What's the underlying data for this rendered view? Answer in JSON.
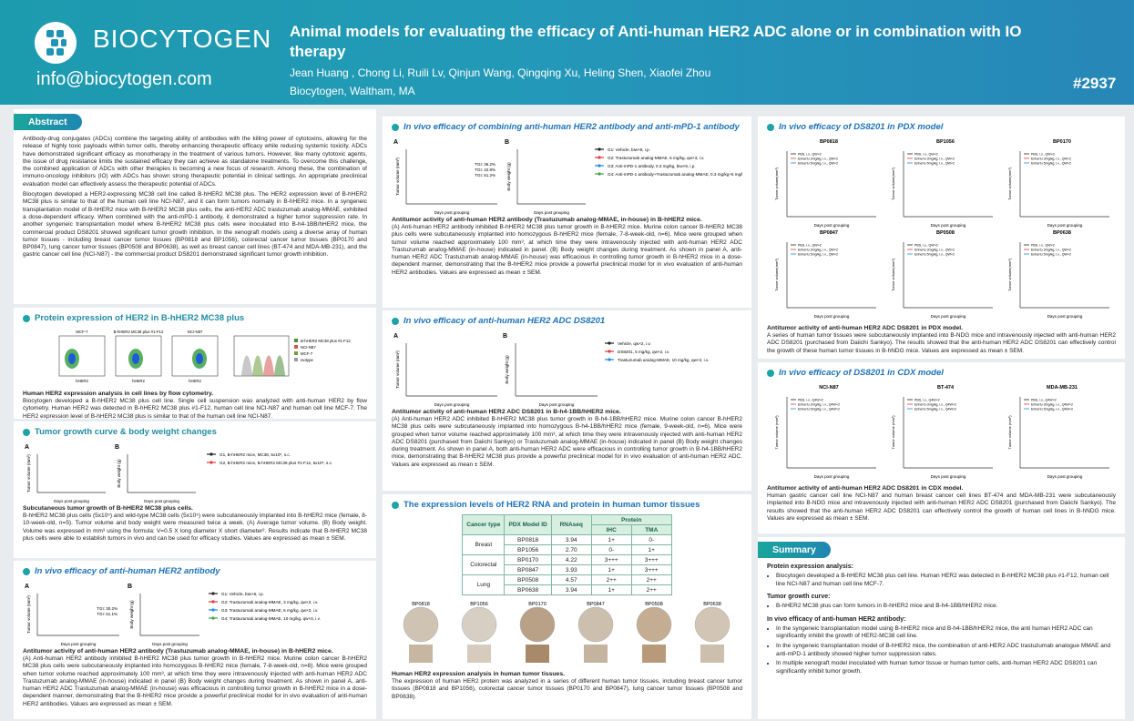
{
  "header": {
    "logo": "BIOCYTOGEN",
    "email": "info@biocytogen.com",
    "title": "Animal models for evaluating the efficacy of Anti-human HER2 ADC alone or in combination with IO therapy",
    "authors": "Jean Huang , Chong Li, Ruili Lv, Qinjun Wang, Qingqing Xu, Heling Shen, Xiaofei Zhou",
    "affiliation": "Biocytogen, Waltham, MA",
    "poster_number": "#2937"
  },
  "abstract": {
    "title": "Abstract",
    "paragraphs": [
      "Antibody-drug conjugates (ADCs) combine the targeting ability of antibodies with the killing power of cytotoxins, allowing for the release of highly toxic payloads within tumor cells, thereby enhancing therapeutic efficacy while reducing systemic toxicity. ADCs have demonstrated significant efficacy as monotherapy in the treatment of various tumors. However, like many cytotoxic agents, the issue of drug resistance limits the sustained efficacy they can achieve as standalone treatments. To overcome this challenge, the combined application of ADCs with other therapies is becoming a new focus of research. Among these, the combination of immuno-oncology inhibitors (IO) with ADCs has shown strong therapeutic potential in clinical settings. An appropriate preclinical evaluation model can effectively assess the therapeutic potential of ADCs.",
      "Biocytogen developed a HER2-expressing MC38 cell line called B-hHER2 MC38 plus. The HER2 expression level of B-hHER2 MC38 plus is similar to that of the human cell line NCI-N87, and it can form tumors normally in B-hHER2 mice. In a syngeneic transplantation model of B-hHER2 mice with B-hHER2 MC38 plus cells, the anti-HER2 ADC trastuzumab analog-MMAE, exhibited a dose-dependent efficacy. When combined with the anti-mPD-1 antibody, it demonstrated a higher tumor suppression rate. In another syngeneic transplantation model where B-hHER2 MC38 plus cells were inoculated into B-h4-1BB/hHER2 mice, the commercial product DS8201 showed significant tumor growth inhibition. In the xenograft models using a diverse array of human tumor tissues - including breast cancer tumor tissues (BP0818 and BP1056), colorectal cancer tumor tissues (BP0170 and BP0847), lung cancer tumor tissues (BP0508 and BP0638), as well as breast cancer cell lines (BT-474 and MDA-MB-231), and the gastric cancer cell line (NCI-N87) - the commercial product DS8201 demonstrated significant tumor growth inhibition."
    ]
  },
  "protein_expression": {
    "title": "Protein expression of HER2 in B-hHER2 MC38 plus",
    "plots": [
      "MCF-7",
      "B-hHER2 MC38 plus #1-F12",
      "NCI-N87"
    ],
    "x_label": "hHER2",
    "legend": [
      "B-hHER2 MC38 plus #1-F12",
      "NCI-N87",
      "MCF-7",
      "Isotype"
    ],
    "caption_title": "Human HER2 expression analysis in cell lines by flow cytometry.",
    "caption": "Biocytogen developed a B-hHER2 MC38 plus cell line. Single cell suspension was analyzed with anti-human HER2 by flow cytometry. Human HER2 was detected in B-hHER2 MC38 plus #1-F12, human cell line NCI-N87 and human cell line MCF-7. The HER2 expression level of B-hHER2 MC38 plus is similar to that of the human cell line NCI-N87."
  },
  "tumor_growth": {
    "title": "Tumor growth curve & body weight changes",
    "figures": [
      {
        "panel": "A",
        "ylabel": "Tumor volume (mm³)",
        "xlabel": "Days post grouping"
      },
      {
        "panel": "B",
        "ylabel": "Body weight (g)",
        "xlabel": "Days post grouping"
      }
    ],
    "legend": [
      "G1, B-hHER2 mice, MC38, 5x10⁵, s.c.",
      "G2, B-hHER2 mice, B-hHER2 MC38 plus #1-F12, 5x10⁵, s.c."
    ],
    "caption_title": "Subcutaneous tumor growth of B-hHER2 MC38 plus cells.",
    "caption": "B-hHER2 MC38 plus cells (5x10⁵) and wild-type MC38 cells (5x10⁵) were subcutaneously implanted into B-hHER2 mice (female, 8-10-week-old, n=5). Tumor volume and body weight were measured twice a week. (A) Average tumor volume. (B) Body weight. Volume was expressed in mm³ using the formula: V=0.5 X long diameter X short diameter². Results indicate that B-hHER2 MC38 plus cells were able to establish tumors in vivo and can be used for efficacy studies. Values are expressed as mean ± SEM."
  },
  "antibody": {
    "title": "In vivo efficacy of anti-human HER2 antibody",
    "figures": [
      {
        "panel": "A",
        "ylabel": "Tumor volume (mm³)",
        "xlabel": "Days post grouping",
        "notes": [
          "TGI: 30.2%",
          "TGI: 61.1%"
        ]
      },
      {
        "panel": "B",
        "ylabel": "Body weight (g)",
        "xlabel": "Days post grouping"
      }
    ],
    "legend": [
      "G1: Vehicle, biw×6, i.p.",
      "G2: Trastuzumab analog-MMAE, 3 mg/kg, qw×3, i.v.",
      "G3: Trastuzumab analog-MMAE, 5 mg/kg, qw×3, i.v.",
      "G4: Trastuzumab analog-MMAE, 10 mg/kg, qw×3, i.v."
    ],
    "caption_title": "Antitumor activity of anti-human HER2 antibody (Trastuzumab analog-MMAE, in-house) in B-hHER2 mice.",
    "caption": "(A) Anti-human HER2 antibody inhibited B-hHER2 MC38 plus tumor growth in B-hHER2 mice. Murine colon cancer B-hHER2 MC38 plus cells were subcutaneously implanted into homozygous B-hHER2 mice (female, 7-8-week-old, n=8). Mice were grouped when tumor volume reached approximately 100 mm³, at which time they were intravenously injected with anti-human HER2 ADC Trastuzumab analog-MMAE (in-house) indicated in panel (B) Body weight changes during treatment. As shown in panel A, anti-human HER2 ADC Trastuzumab analog-MMAE (in-house) was efficacious in controlling tumor growth in B-hHER2 mice in a dose-dependent manner, demonstrating that the B-hHER2 mice provide a powerful preclinical model for in vivo evaluation of anti-human HER2 antibodies. Values are expressed as mean ± SEM."
  },
  "combination": {
    "title": "In vivo efficacy of combining anti-human HER2 antibody and anti-mPD-1 antibody",
    "figures": [
      {
        "panel": "A",
        "ylabel": "Tumor volume (mm³)",
        "xlabel": "Days post grouping",
        "notes": [
          "TGI: 36.2%",
          "TGI: 42.8%",
          "TGI: 51.2%"
        ]
      },
      {
        "panel": "B",
        "ylabel": "Body weight (g)",
        "xlabel": "Days post grouping"
      }
    ],
    "legend": [
      "G1: Vehicle, biw×8, i.p.",
      "G2: Trastuzumab analog-MMAE, 5 mg/kg, qw×3, i.v.",
      "G3: Anti-mPD-1 antibody, 0.3 mg/kg, biw×6, i.p.",
      "G4: Anti-mPD-1 antibody+Trastuzumab analog-MMAE, 0.3 mg/kg+5 mg/kg, biw×6+qw×3, i.p.+ i.v."
    ],
    "caption_title": "Antitumor activity of anti-human HER2 antibody (Trastuzumab analog-MMAE, in-house) in B-hHER2 mice.",
    "caption": "(A) Anti-human HER2 antibody inhibited B-hHER2 MC38 plus tumor growth in B-hHER2 mice. Murine colon cancer B-hHER2 MC38 plus cells were subcutaneously implanted into homozygous B-hHER2 mice (female, 7-8-week-old, n=6). Mice were grouped when tumor volume reached approximately 100 mm³, at which time they were intravenously injected with anti-human HER2 ADC Trastuzumab analog-MMAE (in-house) indicated in panel. (B) Body weight changes during treatment. As shown in panel A, anti-human HER2 ADC Trastuzumab analog-MMAE (in-house) was efficacious in controlling tumor growth in B-hHER2 mice in a dose-dependent manner, demonstrating that the B-hHER2 mice provide a powerful preclinical model for in vivo evaluation of anti-human HER2 antibodies. Values are expressed as mean ± SEM."
  },
  "ds8201": {
    "title": "In vivo efficacy of anti-human HER2 ADC DS8201",
    "figures": [
      {
        "panel": "A",
        "ylabel": "Tumor volume (mm³)",
        "xlabel": "Days post grouping"
      },
      {
        "panel": "B",
        "ylabel": "Body weight (g)",
        "xlabel": "Days post grouping"
      }
    ],
    "legend": [
      "Vehicle, qw×2, i.v.",
      "DS8201, 5 mg/kg, qw×2, i.v.",
      "Trastuzumab analog-MMAE, 10 mg/kg, qw×2, i.v."
    ],
    "caption_title": "Antitumor activity of anti-human HER2 ADC DS8201 in B-h4-1BB/hHER2 mice.",
    "caption": "(A) Anti-human HER2 ADC inhibited B-hHER2 MC38 plus tumor growth in B-h4-1BB/hHER2 mice. Murine colon cancer B-hHER2 MC38 plus cells were subcutaneously implanted into homozygous B-h4-1BB/hHER2 mice (female, 9-week-old, n=6). Mice were grouped when tumor volume reached approximately 100 mm³, at which time they were intravenously injected with anti-human HER2 ADC DS8201 (purchased from Daiichi Sankyo) or Trastuzumab analog-MMAE (in-house) indicated in panel (B) Body weight changes during treatment. As shown in panel A, both anti-human HER2 ADC were efficacious in controlling tumor growth in B-h4-1BB/hHER2 mice, demonstrating that B-hHER2 MC38 plus provide a powerful preclinical model for in vivo evaluation of anti-human HER2 ADC. Values are expressed as mean ± SEM."
  },
  "expression": {
    "title": "The expression levels of HER2 RNA and protein in human tumor tissues",
    "table": {
      "headers": [
        "Cancer type",
        "PDX Model ID",
        "RNAseq",
        "Protein"
      ],
      "subheaders": [
        "IHC",
        "TMA"
      ],
      "groups": [
        {
          "type": "Breast",
          "rows": [
            [
              "BP0818",
              "3.94",
              "1+",
              "0-"
            ],
            [
              "BP1056",
              "2.70",
              "0-",
              "1+"
            ]
          ]
        },
        {
          "type": "Colorectal",
          "rows": [
            [
              "BP0170",
              "4.22",
              "3+++",
              "3+++"
            ],
            [
              "BP0847",
              "3.93",
              "1+",
              "3+++"
            ]
          ]
        },
        {
          "type": "Lung",
          "rows": [
            [
              "BP0508",
              "4.57",
              "2++",
              "2++"
            ],
            [
              "BP0638",
              "3.94",
              "1+",
              "2++"
            ]
          ]
        }
      ]
    },
    "images": [
      "BP0818",
      "BP1056",
      "BP0170",
      "BP0847",
      "BP0508",
      "BP0638"
    ],
    "caption_title": "Human HER2 expression analysis in human tumor tissues.",
    "caption": "The expression of human HER2 protein was analyzed in a series of different human tumor tissues, including breast cancer tumor tissues (BP0818 and BP1056), colorectal cancer tumor tissues (BP0170 and BP0847), lung cancer tumor tissues (BP0508 and BP0638)."
  },
  "pdx": {
    "title": "In vivo efficacy of DS8201 in PDX model",
    "xlabel": "Days post grouping",
    "ylabel": "Tumor volume(mm³)",
    "legend": [
      "PBS, i.v., QW×2",
      "Enhertu 3mg/kg, i.v., QW×2",
      "Enhertu 5mg/kg, i.v., QW×2"
    ],
    "models": [
      "BP0818",
      "BP1056",
      "BP0170",
      "BP0847",
      "BP0508",
      "BP0638"
    ],
    "caption_title": "Antitumor activity of anti-human HER2 ADC DS8201 in PDX model.",
    "caption": "A series of human tumor tissues were subcutaneously implanted into B-NDG mice and intravenously injected with anti-human HER2 ADC DS8201 (purchased from Daiichi Sankyo). The results showed that the anti-human HER2 ADC DS8201 can effectively control the growth of these human tumor tissues in B-hNDG mice. Values are expressed as mean ± SEM."
  },
  "cdx": {
    "title": "In vivo efficacy of DS8201 in CDX model",
    "xlabel": "Days post grouping",
    "ylabel": "Tumor volume (mm³)",
    "legend": [
      "PBS, i.v., Q4W×2",
      "Enhertu 3mg/kg, i.v., Q4W×2",
      "Enhertu 5mg/kg, i.v., Q4W×2"
    ],
    "models": [
      "NCI-N87",
      "BT-474",
      "MDA-MB-231"
    ],
    "caption_title": "Antitumor activity of anti-human HER2 ADC DS8201 in CDX model.",
    "caption": "Human gastric cancer cell line NCI-N87 and human breast cancer cell lines BT-474 and MDA-MB-231 were subcutaneously implanted into B-NDG mice and intravenously injected with anti-human HER2 ADC DS8201 (purchased from Daiichi Sankyo). The results showed that the anti-human HER2 ADC DS8201 can effectively control the growth of human cell lines in B-hNDG mice. Values are expressed as mean ± SEM."
  },
  "summary": {
    "title": "Summary",
    "blocks": [
      {
        "heading": "Protein expression analysis:",
        "bullets": [
          "Biocytogen developed a B-hHER2 MC38 plus cell line. Human HER2 was detected in B-hHER2 MC38 plus #1-F12, human cell line NCI-N87 and human cell line MCF-7."
        ]
      },
      {
        "heading": "Tumor growth curve:",
        "bullets": [
          "B-hHER2 MC38 plus can form tumors in B-hHER2 mice and B-h4-1BB/hHER2 mice."
        ]
      },
      {
        "heading": "In vivo efficacy of anti-human HER2 antibody:",
        "bullets": [
          "In the syngeneic transplantation model using B-hHER2 mice and B-h4-1BB/hHER2 mice, the anti human HER2 ADC can significantly inhibit the growth of HER2-MC38 cell line.",
          "In the syngeneic transplantation model of B-hHER2 mice, the combination of anti-HER2 ADC trastuzumab analogue MMAE and anti-mPD-1 antibody showed higher tumor suppression rates.",
          "In multiple xenograft model inoculated with human tumor tissue or human tumor cells, anti-human HER2 ADC DS8201 can significantly inhibit tumor growth."
        ]
      }
    ]
  }
}
